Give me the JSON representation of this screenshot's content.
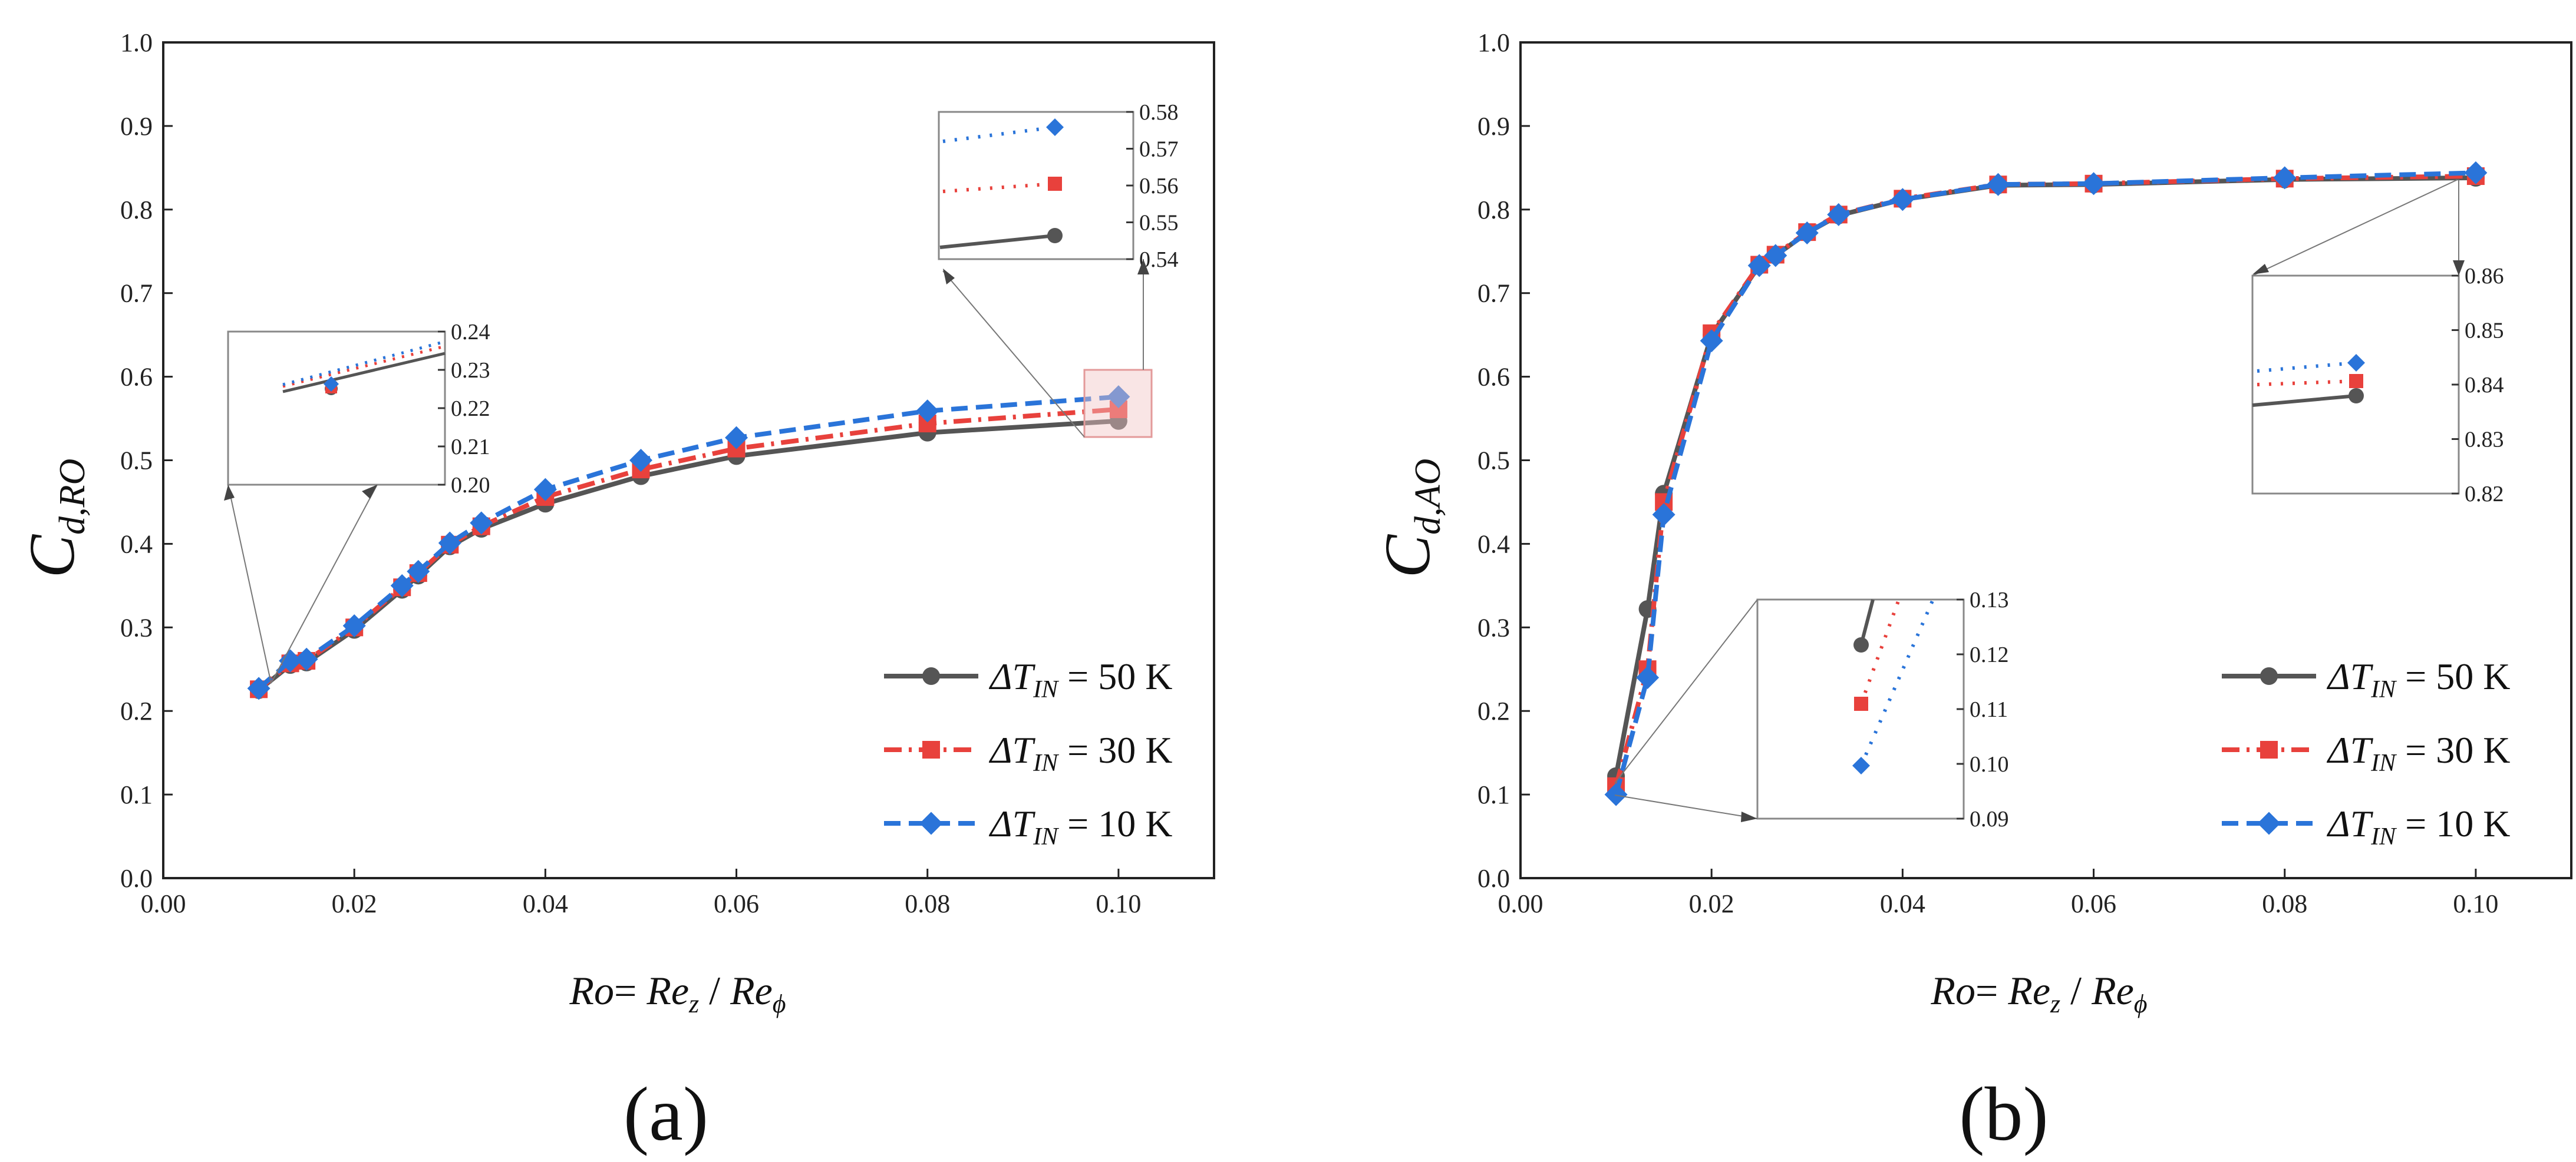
{
  "chart_data": [
    {
      "type": "line",
      "panel_label": "(a)",
      "ylabel_main": "C",
      "ylabel_sub": "d,RO",
      "xlabel": {
        "a": "Ro",
        "eq": "= ",
        "b": "Re",
        "b_sub": "z",
        "slash": " / ",
        "c": "Re",
        "c_sub": "ϕ"
      },
      "xlim": [
        0.0,
        0.11
      ],
      "ylim": [
        0.0,
        1.0
      ],
      "xticks": [
        "0.00",
        "0.02",
        "0.04",
        "0.06",
        "0.08",
        "0.10"
      ],
      "yticks": [
        "0.0",
        "0.1",
        "0.2",
        "0.3",
        "0.4",
        "0.5",
        "0.6",
        "0.7",
        "0.8",
        "0.9",
        "1.0"
      ],
      "x": [
        0.01,
        0.0133,
        0.015,
        0.02,
        0.025,
        0.0267,
        0.03,
        0.0333,
        0.04,
        0.05,
        0.06,
        0.08,
        0.1
      ],
      "series": [
        {
          "name": "ΔT_IN = 50 K",
          "legend_main": "ΔT",
          "legend_sub": "IN",
          "legend_rest": " = 50 K",
          "color": "#555555",
          "dash": "solid",
          "marker": "circle",
          "values": [
            0.225,
            0.255,
            0.258,
            0.297,
            0.345,
            0.362,
            0.397,
            0.418,
            0.448,
            0.481,
            0.505,
            0.533,
            0.547
          ]
        },
        {
          "name": "ΔT_IN = 30 K",
          "legend_main": "ΔT",
          "legend_sub": "IN",
          "legend_rest": " = 30 K",
          "color": "#e8413c",
          "dash": "dashdot",
          "marker": "square",
          "values": [
            0.226,
            0.257,
            0.26,
            0.3,
            0.348,
            0.365,
            0.399,
            0.421,
            0.456,
            0.489,
            0.514,
            0.544,
            0.561
          ]
        },
        {
          "name": "ΔT_IN = 10 K",
          "legend_main": "ΔT",
          "legend_sub": "IN",
          "legend_rest": " = 10 K",
          "color": "#2a74d9",
          "dash": "dash",
          "marker": "diamond",
          "values": [
            0.227,
            0.26,
            0.262,
            0.302,
            0.35,
            0.367,
            0.401,
            0.425,
            0.465,
            0.5,
            0.527,
            0.559,
            0.576
          ]
        }
      ],
      "insets": [
        {
          "yticks": [
            "0.20",
            "0.21",
            "0.22",
            "0.23",
            "0.24"
          ],
          "ylim": [
            0.2,
            0.24
          ]
        },
        {
          "yticks": [
            "0.54",
            "0.55",
            "0.56",
            "0.57",
            "0.58"
          ],
          "ylim": [
            0.54,
            0.58
          ]
        }
      ]
    },
    {
      "type": "line",
      "panel_label": "(b)",
      "ylabel_main": "C",
      "ylabel_sub": "d,AO",
      "xlabel": {
        "a": "Ro",
        "eq": "= ",
        "b": "Re",
        "b_sub": "z",
        "slash": " / ",
        "c": "Re",
        "c_sub": "ϕ"
      },
      "xlim": [
        0.0,
        0.11
      ],
      "ylim": [
        0.0,
        1.0
      ],
      "xticks": [
        "0.00",
        "0.02",
        "0.04",
        "0.06",
        "0.08",
        "0.10"
      ],
      "yticks": [
        "0.0",
        "0.1",
        "0.2",
        "0.3",
        "0.4",
        "0.5",
        "0.6",
        "0.7",
        "0.8",
        "0.9",
        "1.0"
      ],
      "x": [
        0.01,
        0.0133,
        0.015,
        0.02,
        0.025,
        0.0267,
        0.03,
        0.0333,
        0.04,
        0.05,
        0.06,
        0.08,
        0.1
      ],
      "series": [
        {
          "name": "ΔT_IN = 50 K",
          "legend_main": "ΔT",
          "legend_sub": "IN",
          "legend_rest": " = 50 K",
          "color": "#555555",
          "dash": "solid",
          "marker": "circle",
          "values": [
            0.122,
            0.322,
            0.46,
            0.65,
            0.733,
            0.745,
            0.772,
            0.793,
            0.812,
            0.829,
            0.83,
            0.836,
            0.838
          ]
        },
        {
          "name": "ΔT_IN = 30 K",
          "legend_main": "ΔT",
          "legend_sub": "IN",
          "legend_rest": " = 30 K",
          "color": "#e8413c",
          "dash": "dashdot",
          "marker": "square",
          "values": [
            0.11,
            0.25,
            0.45,
            0.652,
            0.734,
            0.746,
            0.773,
            0.794,
            0.813,
            0.83,
            0.831,
            0.837,
            0.84
          ]
        },
        {
          "name": "ΔT_IN = 10 K",
          "legend_main": "ΔT",
          "legend_sub": "IN",
          "legend_rest": " = 10 K",
          "color": "#2a74d9",
          "dash": "dash",
          "marker": "diamond",
          "values": [
            0.1,
            0.24,
            0.435,
            0.643,
            0.733,
            0.745,
            0.772,
            0.794,
            0.812,
            0.83,
            0.831,
            0.838,
            0.844
          ]
        }
      ],
      "insets": [
        {
          "yticks": [
            "0.82",
            "0.83",
            "0.84",
            "0.85",
            "0.86"
          ],
          "ylim": [
            0.82,
            0.86
          ]
        },
        {
          "yticks": [
            "0.09",
            "0.10",
            "0.11",
            "0.12",
            "0.13"
          ],
          "ylim": [
            0.09,
            0.13
          ]
        }
      ]
    }
  ]
}
